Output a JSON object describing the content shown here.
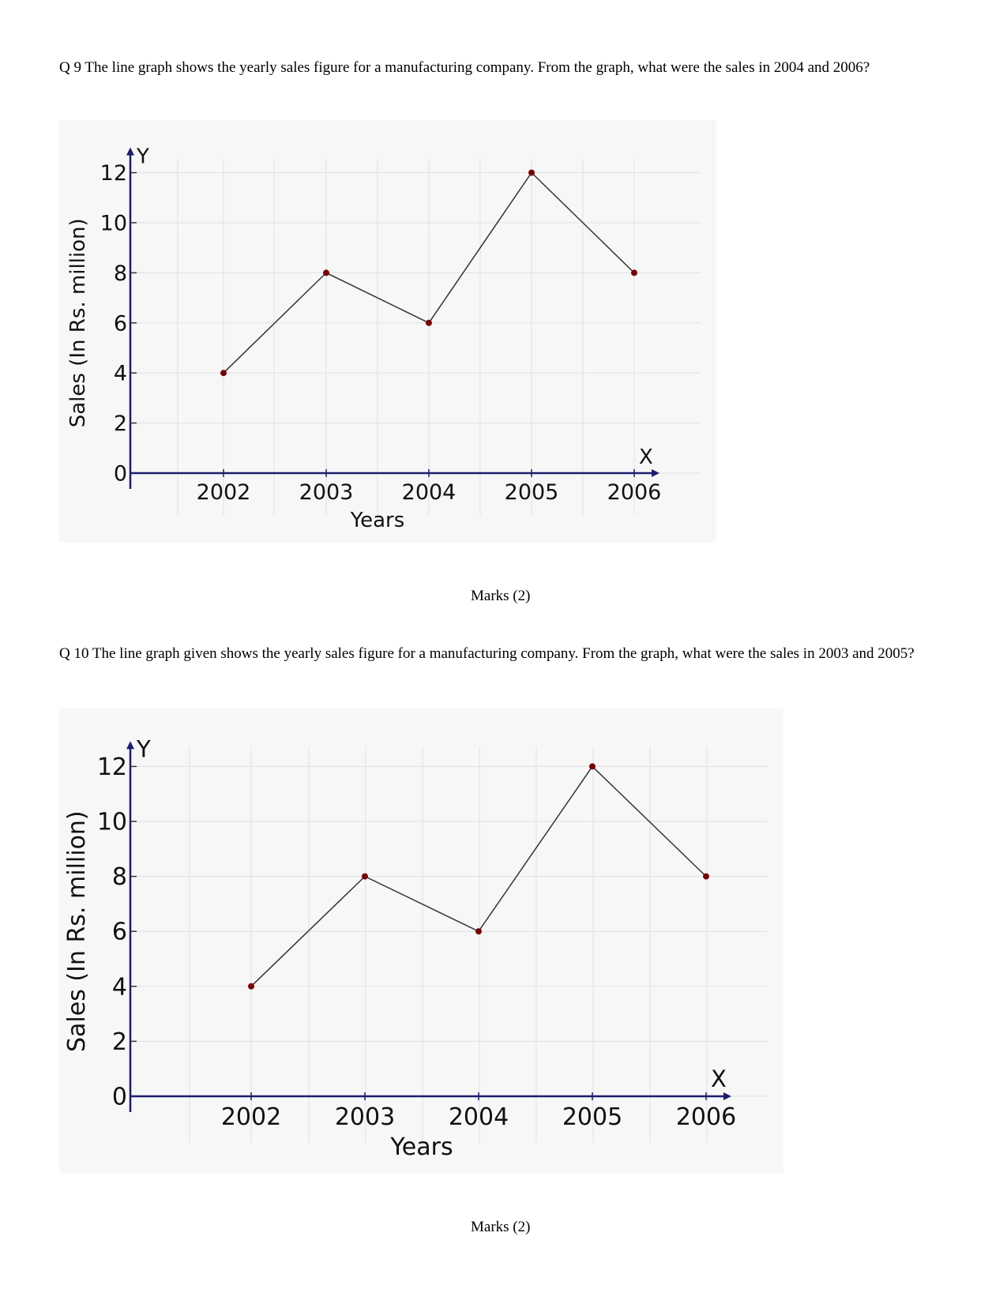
{
  "questions": [
    {
      "text": "Q 9 The line graph shows the yearly sales figure for a manufacturing company. From the graph, what were the sales in 2004 and 2006?",
      "marks": "Marks (2)"
    },
    {
      "text": "Q 10 The line graph given shows the yearly sales figure for a manufacturing company. From the graph, what were the sales in 2003 and 2005?",
      "marks": "Marks (2)"
    }
  ],
  "chart_data": [
    {
      "type": "line",
      "x": [
        "2002",
        "2003",
        "2004",
        "2005",
        "2006"
      ],
      "series": [
        {
          "values": [
            4,
            8,
            6,
            12,
            8
          ]
        }
      ],
      "xlabel": "Years",
      "ylabel": "Sales (In Rs. million)",
      "x_axis_letter": "X",
      "y_axis_letter": "Y",
      "y_ticks": [
        "0",
        "2",
        "4",
        "6",
        "8",
        "10",
        "12"
      ],
      "ylim": [
        0,
        12
      ],
      "grid": true,
      "line_color": "#333333",
      "marker_color": "#7a0000"
    },
    {
      "type": "line",
      "x": [
        "2002",
        "2003",
        "2004",
        "2005",
        "2006"
      ],
      "series": [
        {
          "values": [
            4,
            8,
            6,
            12,
            8
          ]
        }
      ],
      "xlabel": "Years",
      "ylabel": "Sales (In Rs. million)",
      "x_axis_letter": "X",
      "y_axis_letter": "Y",
      "y_ticks": [
        "0",
        "2",
        "4",
        "6",
        "8",
        "10",
        "12"
      ],
      "ylim": [
        0,
        12
      ],
      "grid": true,
      "line_color": "#333333",
      "marker_color": "#7a0000"
    }
  ]
}
